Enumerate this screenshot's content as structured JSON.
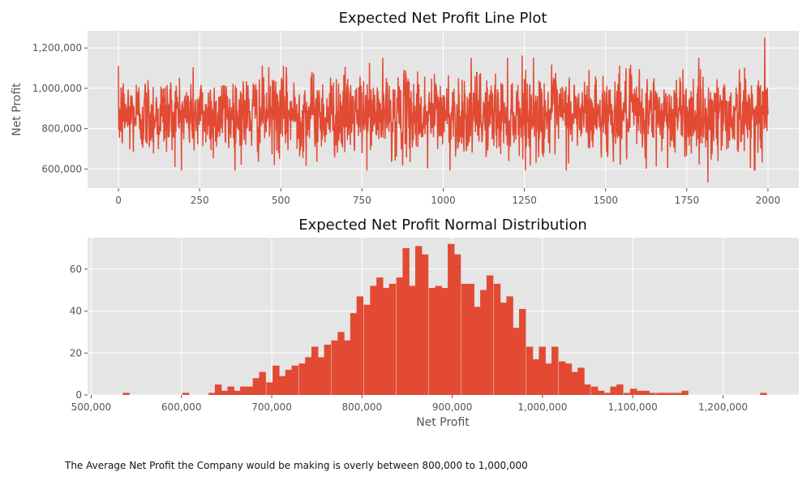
{
  "chart_data": [
    {
      "type": "line",
      "title": "Expected Net Profit Line Plot",
      "xlabel": "",
      "ylabel": "Net Profit",
      "xlim": [
        -95,
        2095
      ],
      "ylim": [
        505000,
        1285000
      ],
      "xticks": [
        0,
        250,
        500,
        750,
        1000,
        1250,
        1500,
        1750,
        2000
      ],
      "xtick_labels": [
        "0",
        "250",
        "500",
        "750",
        "1000",
        "1250",
        "1500",
        "1750",
        "2000"
      ],
      "yticks": [
        600000,
        800000,
        1000000,
        1200000
      ],
      "ytick_labels": [
        "600,000",
        "800,000",
        "1,000,000",
        "1,200,000"
      ],
      "grid": true,
      "color": "#E24A33",
      "n_points": 2000,
      "mean": 870000,
      "std": 100000,
      "min": 535000,
      "max": 1250000,
      "notable_points": [
        {
          "x": 0,
          "y": 1110000
        },
        {
          "x": 952,
          "y": 605000
        },
        {
          "x": 1243,
          "y": 1160000
        },
        {
          "x": 1625,
          "y": 603000
        },
        {
          "x": 1815,
          "y": 535000
        },
        {
          "x": 1990,
          "y": 1250000
        }
      ]
    },
    {
      "type": "bar",
      "subtype": "histogram",
      "title": "Expected Net Profit Normal Distribution",
      "xlabel": "Net Profit",
      "ylabel": "",
      "xlim": [
        496000,
        1284000
      ],
      "ylim": [
        0,
        75
      ],
      "bin_width": 7200,
      "xticks": [
        500000,
        600000,
        700000,
        800000,
        900000,
        1000000,
        1100000,
        1200000
      ],
      "xtick_labels": [
        "500,000",
        "600,000",
        "700,000",
        "800,000",
        "900,000",
        "1,000,000",
        "1,100,000",
        "1,200,000"
      ],
      "yticks": [
        0,
        20,
        40,
        60
      ],
      "ytick_labels": [
        "0",
        "20",
        "40",
        "60"
      ],
      "grid": true,
      "color": "#E24A33",
      "bins": [
        [
          535000,
          1
        ],
        [
          601000,
          1
        ],
        [
          630000,
          1
        ],
        [
          637000,
          5
        ],
        [
          644000,
          2
        ],
        [
          651000,
          4
        ],
        [
          658000,
          2
        ],
        [
          665000,
          4
        ],
        [
          672000,
          4
        ],
        [
          679000,
          8
        ],
        [
          686000,
          11
        ],
        [
          694000,
          6
        ],
        [
          701000,
          14
        ],
        [
          708000,
          9
        ],
        [
          715000,
          12
        ],
        [
          722000,
          14
        ],
        [
          730000,
          15
        ],
        [
          737000,
          18
        ],
        [
          744000,
          23
        ],
        [
          751000,
          18
        ],
        [
          758000,
          24
        ],
        [
          766000,
          26
        ],
        [
          773000,
          30
        ],
        [
          780000,
          26
        ],
        [
          787000,
          39
        ],
        [
          794000,
          47
        ],
        [
          802000,
          43
        ],
        [
          809000,
          52
        ],
        [
          816000,
          56
        ],
        [
          823000,
          51
        ],
        [
          830000,
          53
        ],
        [
          838000,
          56
        ],
        [
          845000,
          70
        ],
        [
          852000,
          52
        ],
        [
          859000,
          71
        ],
        [
          866000,
          67
        ],
        [
          874000,
          51
        ],
        [
          881000,
          52
        ],
        [
          888000,
          51
        ],
        [
          895000,
          72
        ],
        [
          902000,
          67
        ],
        [
          910000,
          53
        ],
        [
          917000,
          53
        ],
        [
          924000,
          42
        ],
        [
          931000,
          50
        ],
        [
          938000,
          57
        ],
        [
          946000,
          53
        ],
        [
          953000,
          44
        ],
        [
          960000,
          47
        ],
        [
          967000,
          32
        ],
        [
          974000,
          41
        ],
        [
          982000,
          23
        ],
        [
          989000,
          17
        ],
        [
          996000,
          23
        ],
        [
          1003000,
          15
        ],
        [
          1010000,
          23
        ],
        [
          1018000,
          16
        ],
        [
          1025000,
          15
        ],
        [
          1032000,
          11
        ],
        [
          1039000,
          13
        ],
        [
          1046000,
          5
        ],
        [
          1054000,
          4
        ],
        [
          1061000,
          2
        ],
        [
          1068000,
          1
        ],
        [
          1075000,
          4
        ],
        [
          1082000,
          5
        ],
        [
          1090000,
          1
        ],
        [
          1097000,
          3
        ],
        [
          1104000,
          2
        ],
        [
          1111000,
          2
        ],
        [
          1118000,
          1
        ],
        [
          1126000,
          1
        ],
        [
          1133000,
          1
        ],
        [
          1140000,
          1
        ],
        [
          1147000,
          1
        ],
        [
          1154000,
          2
        ],
        [
          1241000,
          1
        ]
      ]
    }
  ],
  "caption": "The Average Net Profit the Company would be making is overly between 800,000 to 1,000,000"
}
